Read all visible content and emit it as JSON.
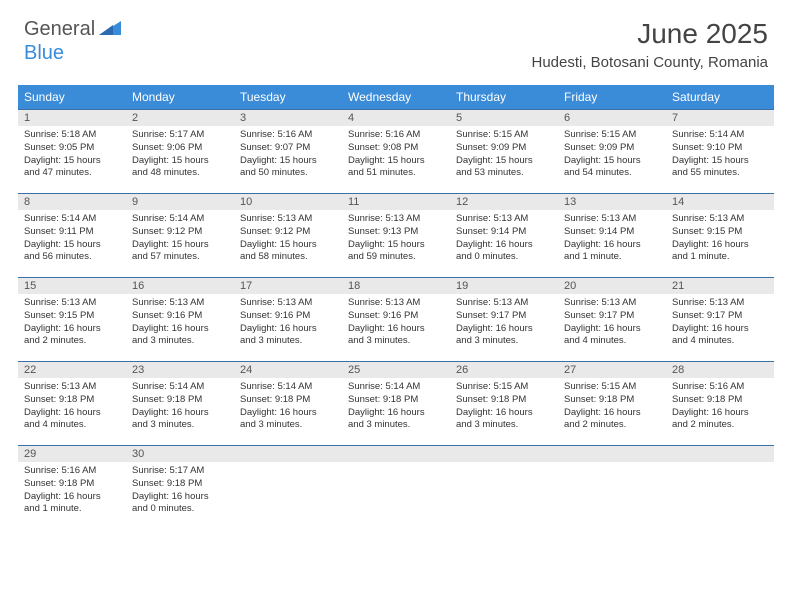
{
  "logo": {
    "text1": "General",
    "text2": "Blue"
  },
  "title": "June 2025",
  "location": "Hudesti, Botosani County, Romania",
  "weekdays": [
    "Sunday",
    "Monday",
    "Tuesday",
    "Wednesday",
    "Thursday",
    "Friday",
    "Saturday"
  ],
  "colors": {
    "header_bg": "#3a8bd8",
    "header_text": "#ffffff",
    "daybar_bg": "#e9e9e9",
    "daybar_border": "#3a6fa8",
    "body_text": "#333333"
  },
  "weeks": [
    [
      {
        "n": "1",
        "sr": "Sunrise: 5:18 AM",
        "ss": "Sunset: 9:05 PM",
        "d1": "Daylight: 15 hours",
        "d2": "and 47 minutes."
      },
      {
        "n": "2",
        "sr": "Sunrise: 5:17 AM",
        "ss": "Sunset: 9:06 PM",
        "d1": "Daylight: 15 hours",
        "d2": "and 48 minutes."
      },
      {
        "n": "3",
        "sr": "Sunrise: 5:16 AM",
        "ss": "Sunset: 9:07 PM",
        "d1": "Daylight: 15 hours",
        "d2": "and 50 minutes."
      },
      {
        "n": "4",
        "sr": "Sunrise: 5:16 AM",
        "ss": "Sunset: 9:08 PM",
        "d1": "Daylight: 15 hours",
        "d2": "and 51 minutes."
      },
      {
        "n": "5",
        "sr": "Sunrise: 5:15 AM",
        "ss": "Sunset: 9:09 PM",
        "d1": "Daylight: 15 hours",
        "d2": "and 53 minutes."
      },
      {
        "n": "6",
        "sr": "Sunrise: 5:15 AM",
        "ss": "Sunset: 9:09 PM",
        "d1": "Daylight: 15 hours",
        "d2": "and 54 minutes."
      },
      {
        "n": "7",
        "sr": "Sunrise: 5:14 AM",
        "ss": "Sunset: 9:10 PM",
        "d1": "Daylight: 15 hours",
        "d2": "and 55 minutes."
      }
    ],
    [
      {
        "n": "8",
        "sr": "Sunrise: 5:14 AM",
        "ss": "Sunset: 9:11 PM",
        "d1": "Daylight: 15 hours",
        "d2": "and 56 minutes."
      },
      {
        "n": "9",
        "sr": "Sunrise: 5:14 AM",
        "ss": "Sunset: 9:12 PM",
        "d1": "Daylight: 15 hours",
        "d2": "and 57 minutes."
      },
      {
        "n": "10",
        "sr": "Sunrise: 5:13 AM",
        "ss": "Sunset: 9:12 PM",
        "d1": "Daylight: 15 hours",
        "d2": "and 58 minutes."
      },
      {
        "n": "11",
        "sr": "Sunrise: 5:13 AM",
        "ss": "Sunset: 9:13 PM",
        "d1": "Daylight: 15 hours",
        "d2": "and 59 minutes."
      },
      {
        "n": "12",
        "sr": "Sunrise: 5:13 AM",
        "ss": "Sunset: 9:14 PM",
        "d1": "Daylight: 16 hours",
        "d2": "and 0 minutes."
      },
      {
        "n": "13",
        "sr": "Sunrise: 5:13 AM",
        "ss": "Sunset: 9:14 PM",
        "d1": "Daylight: 16 hours",
        "d2": "and 1 minute."
      },
      {
        "n": "14",
        "sr": "Sunrise: 5:13 AM",
        "ss": "Sunset: 9:15 PM",
        "d1": "Daylight: 16 hours",
        "d2": "and 1 minute."
      }
    ],
    [
      {
        "n": "15",
        "sr": "Sunrise: 5:13 AM",
        "ss": "Sunset: 9:15 PM",
        "d1": "Daylight: 16 hours",
        "d2": "and 2 minutes."
      },
      {
        "n": "16",
        "sr": "Sunrise: 5:13 AM",
        "ss": "Sunset: 9:16 PM",
        "d1": "Daylight: 16 hours",
        "d2": "and 3 minutes."
      },
      {
        "n": "17",
        "sr": "Sunrise: 5:13 AM",
        "ss": "Sunset: 9:16 PM",
        "d1": "Daylight: 16 hours",
        "d2": "and 3 minutes."
      },
      {
        "n": "18",
        "sr": "Sunrise: 5:13 AM",
        "ss": "Sunset: 9:16 PM",
        "d1": "Daylight: 16 hours",
        "d2": "and 3 minutes."
      },
      {
        "n": "19",
        "sr": "Sunrise: 5:13 AM",
        "ss": "Sunset: 9:17 PM",
        "d1": "Daylight: 16 hours",
        "d2": "and 3 minutes."
      },
      {
        "n": "20",
        "sr": "Sunrise: 5:13 AM",
        "ss": "Sunset: 9:17 PM",
        "d1": "Daylight: 16 hours",
        "d2": "and 4 minutes."
      },
      {
        "n": "21",
        "sr": "Sunrise: 5:13 AM",
        "ss": "Sunset: 9:17 PM",
        "d1": "Daylight: 16 hours",
        "d2": "and 4 minutes."
      }
    ],
    [
      {
        "n": "22",
        "sr": "Sunrise: 5:13 AM",
        "ss": "Sunset: 9:18 PM",
        "d1": "Daylight: 16 hours",
        "d2": "and 4 minutes."
      },
      {
        "n": "23",
        "sr": "Sunrise: 5:14 AM",
        "ss": "Sunset: 9:18 PM",
        "d1": "Daylight: 16 hours",
        "d2": "and 3 minutes."
      },
      {
        "n": "24",
        "sr": "Sunrise: 5:14 AM",
        "ss": "Sunset: 9:18 PM",
        "d1": "Daylight: 16 hours",
        "d2": "and 3 minutes."
      },
      {
        "n": "25",
        "sr": "Sunrise: 5:14 AM",
        "ss": "Sunset: 9:18 PM",
        "d1": "Daylight: 16 hours",
        "d2": "and 3 minutes."
      },
      {
        "n": "26",
        "sr": "Sunrise: 5:15 AM",
        "ss": "Sunset: 9:18 PM",
        "d1": "Daylight: 16 hours",
        "d2": "and 3 minutes."
      },
      {
        "n": "27",
        "sr": "Sunrise: 5:15 AM",
        "ss": "Sunset: 9:18 PM",
        "d1": "Daylight: 16 hours",
        "d2": "and 2 minutes."
      },
      {
        "n": "28",
        "sr": "Sunrise: 5:16 AM",
        "ss": "Sunset: 9:18 PM",
        "d1": "Daylight: 16 hours",
        "d2": "and 2 minutes."
      }
    ],
    [
      {
        "n": "29",
        "sr": "Sunrise: 5:16 AM",
        "ss": "Sunset: 9:18 PM",
        "d1": "Daylight: 16 hours",
        "d2": "and 1 minute."
      },
      {
        "n": "30",
        "sr": "Sunrise: 5:17 AM",
        "ss": "Sunset: 9:18 PM",
        "d1": "Daylight: 16 hours",
        "d2": "and 0 minutes."
      },
      null,
      null,
      null,
      null,
      null
    ]
  ]
}
